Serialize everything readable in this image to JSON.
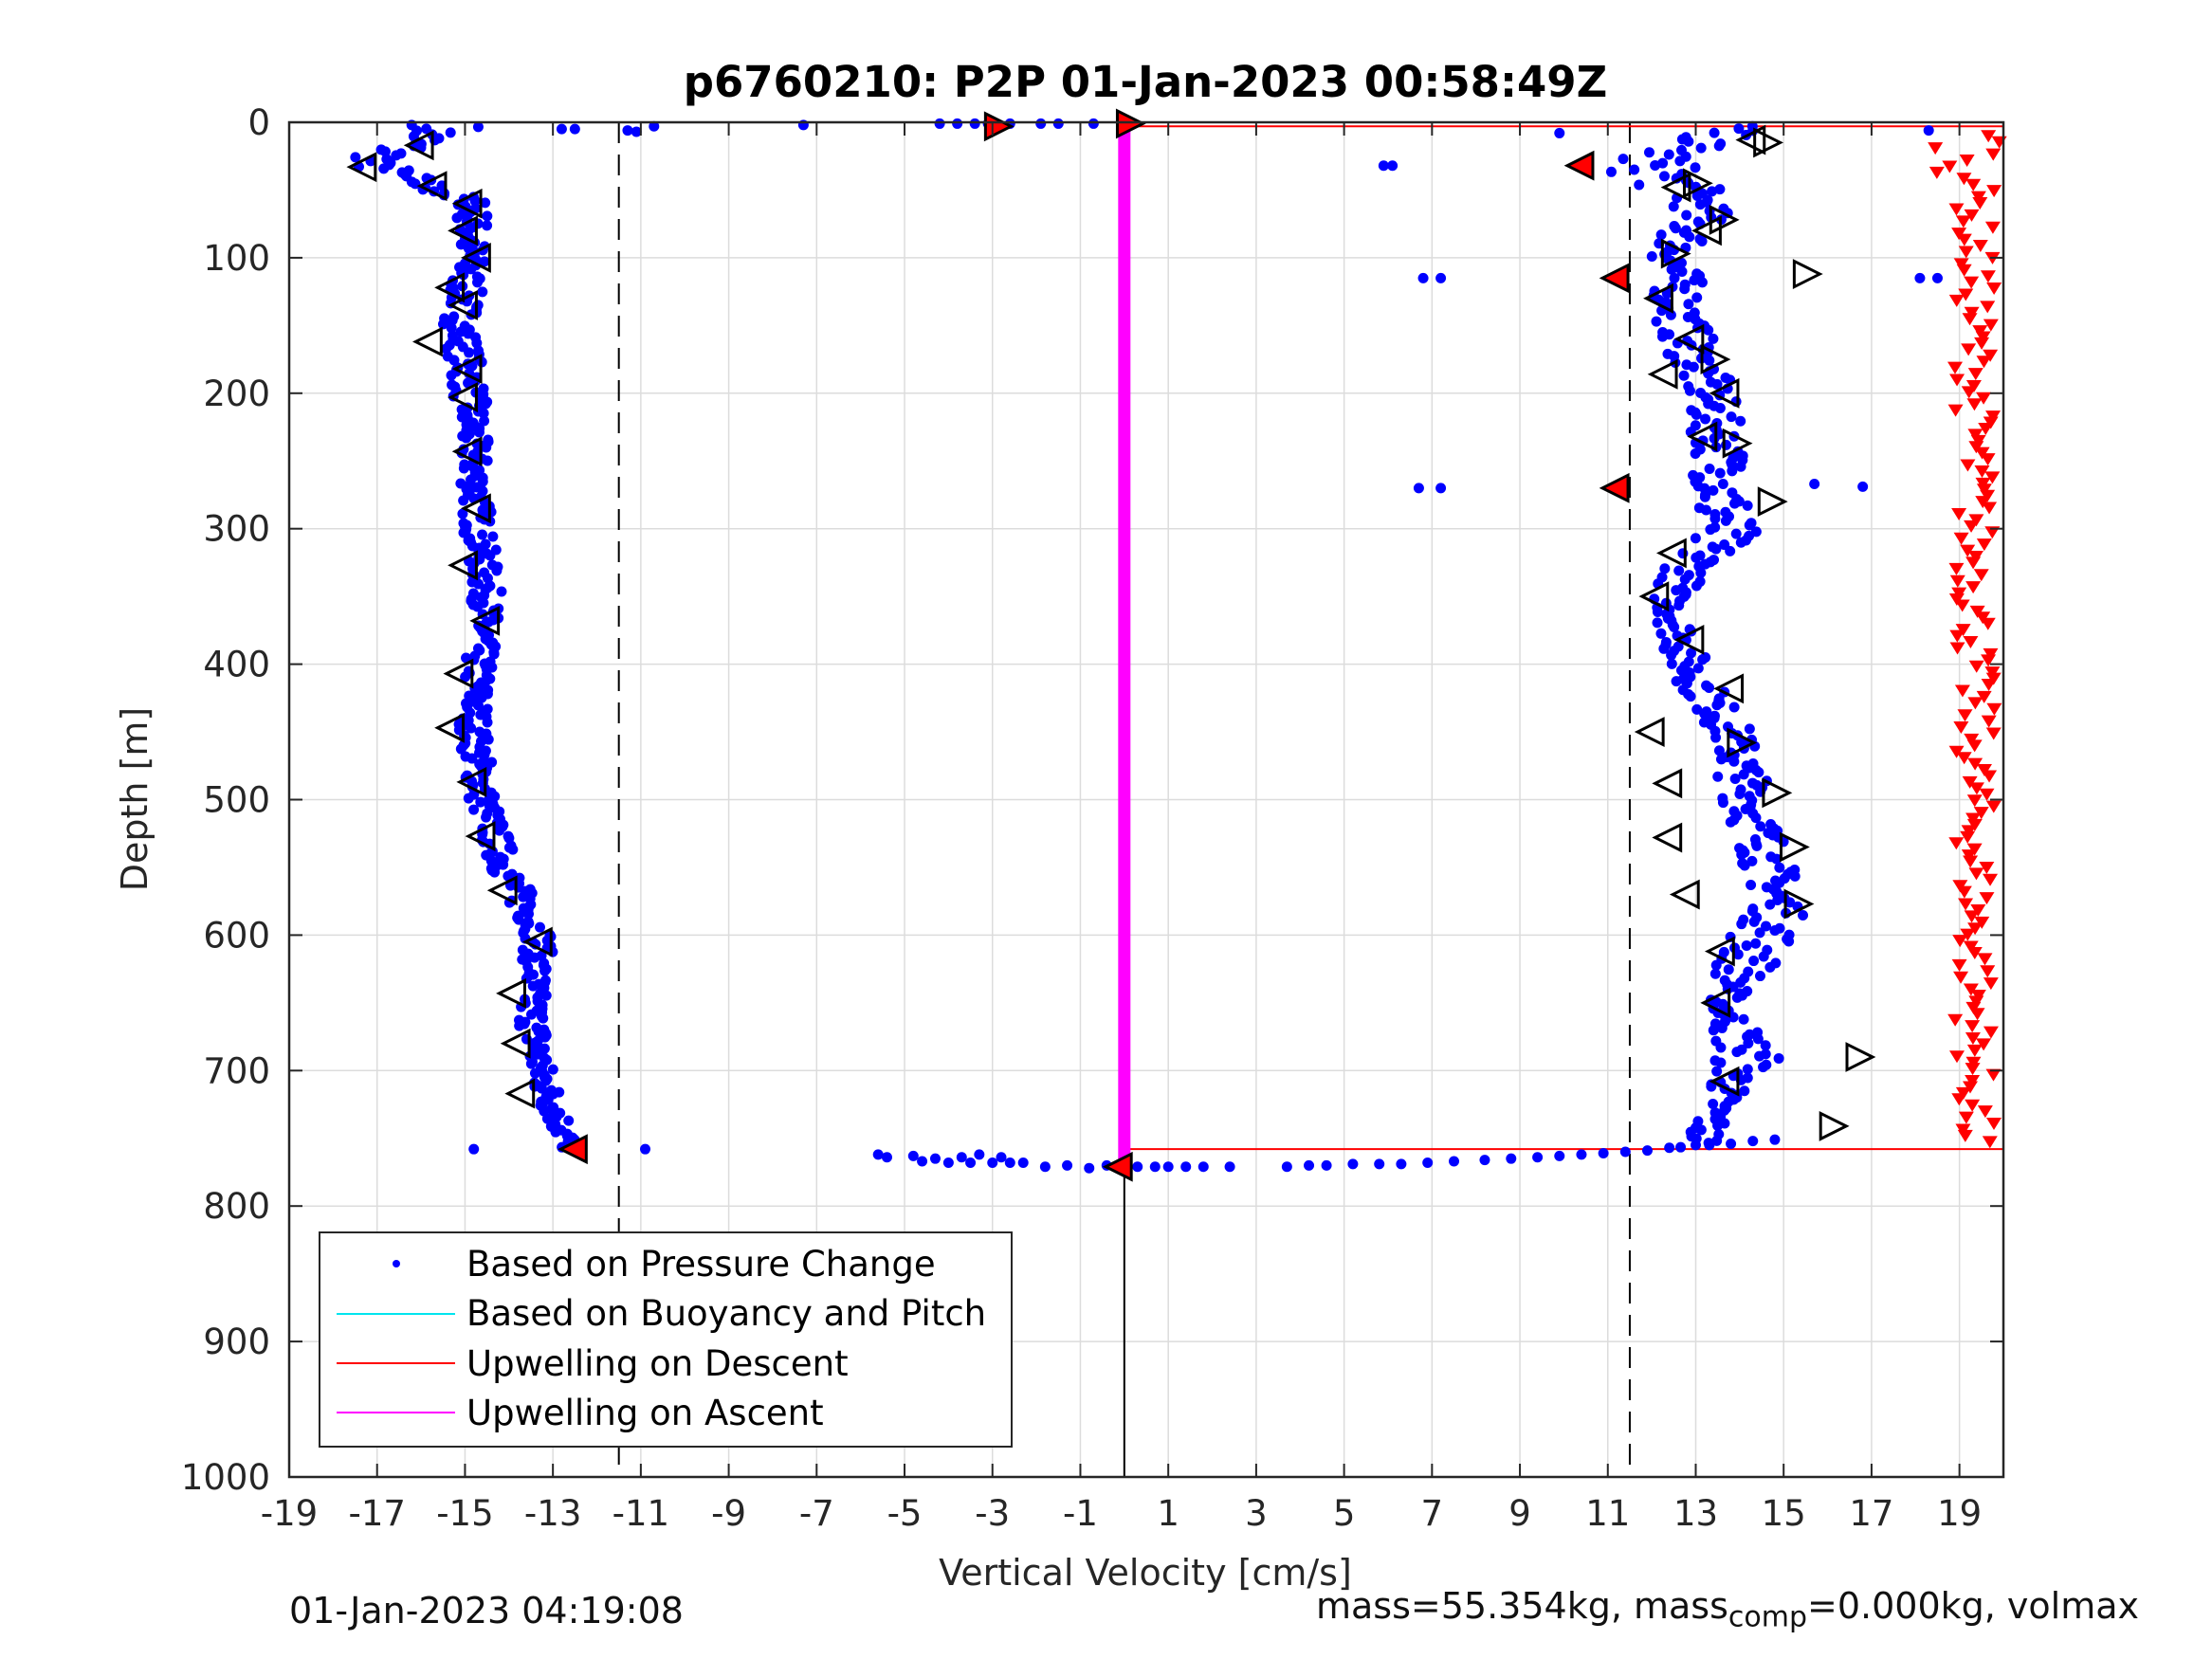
{
  "chart_data": {
    "type": "scatter",
    "title": "p6760210: P2P 01-Jan-2023 00:58:49Z",
    "xlabel": "Vertical Velocity [cm/s]",
    "ylabel": "Depth [m]",
    "xlim": [
      -19,
      20
    ],
    "ylim": [
      0,
      1000
    ],
    "y_reversed": true,
    "grid": true,
    "x_ticks": [
      "-19",
      "-17",
      "-15",
      "-13",
      "-11",
      "-9",
      "-7",
      "-5",
      "-3",
      "-1",
      "1",
      "3",
      "5",
      "7",
      "9",
      "11",
      "13",
      "15",
      "17",
      "19"
    ],
    "y_ticks": [
      "0",
      "100",
      "200",
      "300",
      "400",
      "500",
      "600",
      "700",
      "800",
      "900",
      "1000"
    ],
    "legend_position": "bottom-left",
    "legend": [
      {
        "label": "Based on Pressure Change",
        "color": "#0000ff",
        "marker": "dot"
      },
      {
        "label": "Based on Buoyancy and Pitch",
        "color": "#00e5ee",
        "marker": "line"
      },
      {
        "label": "Upwelling on Descent",
        "color": "#ff0000",
        "marker": "line"
      },
      {
        "label": "Upwelling on Ascent",
        "color": "#ff00ff",
        "marker": "line"
      }
    ],
    "colors": {
      "pressure": "#0000ff",
      "buoyancy": "#00e5ee",
      "descent": "#ff0000",
      "ascent": "#ff00ff",
      "axis": "#262626",
      "grid": "#dcdcdc"
    },
    "dashed_lines_x": [
      -11.5,
      11.5
    ],
    "vertical_line": {
      "x": 0,
      "y_from": 770,
      "y_to": 1000
    },
    "red_connectors": [
      {
        "x1": 0,
        "y": 3,
        "x2": 20
      },
      {
        "x1": 0,
        "y": 758,
        "x2": 20
      }
    ],
    "ascent_segment": {
      "x": 0,
      "y_from": 3,
      "y_to": 770
    },
    "descent_profile": [
      {
        "depth": 0,
        "mean": -15.2,
        "spread": 0.9
      },
      {
        "depth": 30,
        "mean": -17.2,
        "spread": 0.6
      },
      {
        "depth": 60,
        "mean": -14.8,
        "spread": 0.4
      },
      {
        "depth": 100,
        "mean": -14.9,
        "spread": 0.4
      },
      {
        "depth": 150,
        "mean": -15.1,
        "spread": 0.4
      },
      {
        "depth": 200,
        "mean": -14.9,
        "spread": 0.4
      },
      {
        "depth": 250,
        "mean": -14.8,
        "spread": 0.35
      },
      {
        "depth": 300,
        "mean": -14.7,
        "spread": 0.35
      },
      {
        "depth": 350,
        "mean": -14.5,
        "spread": 0.35
      },
      {
        "depth": 400,
        "mean": -14.7,
        "spread": 0.35
      },
      {
        "depth": 450,
        "mean": -14.8,
        "spread": 0.35
      },
      {
        "depth": 500,
        "mean": -14.6,
        "spread": 0.35
      },
      {
        "depth": 550,
        "mean": -14.1,
        "spread": 0.35
      },
      {
        "depth": 600,
        "mean": -13.3,
        "spread": 0.35
      },
      {
        "depth": 650,
        "mean": -13.5,
        "spread": 0.35
      },
      {
        "depth": 700,
        "mean": -13.3,
        "spread": 0.35
      },
      {
        "depth": 750,
        "mean": -12.7,
        "spread": 0.3
      },
      {
        "depth": 760,
        "mean": -12.5,
        "spread": 0.3
      }
    ],
    "ascent_profile": [
      {
        "depth": 760,
        "mean": 13.0,
        "spread": 0.5
      },
      {
        "depth": 720,
        "mean": 13.6,
        "spread": 0.4
      },
      {
        "depth": 690,
        "mean": 14.2,
        "spread": 0.8
      },
      {
        "depth": 650,
        "mean": 13.6,
        "spread": 0.3
      },
      {
        "depth": 610,
        "mean": 14.4,
        "spread": 0.9
      },
      {
        "depth": 580,
        "mean": 14.9,
        "spread": 0.6
      },
      {
        "depth": 540,
        "mean": 14.6,
        "spread": 0.6
      },
      {
        "depth": 500,
        "mean": 14.2,
        "spread": 0.6
      },
      {
        "depth": 450,
        "mean": 13.8,
        "spread": 0.5
      },
      {
        "depth": 400,
        "mean": 12.8,
        "spread": 0.5
      },
      {
        "depth": 350,
        "mean": 12.4,
        "spread": 0.4
      },
      {
        "depth": 300,
        "mean": 13.6,
        "spread": 0.9
      },
      {
        "depth": 250,
        "mean": 13.6,
        "spread": 0.6
      },
      {
        "depth": 200,
        "mean": 13.3,
        "spread": 0.6
      },
      {
        "depth": 150,
        "mean": 12.7,
        "spread": 0.6
      },
      {
        "depth": 100,
        "mean": 12.5,
        "spread": 0.6
      },
      {
        "depth": 60,
        "mean": 13.2,
        "spread": 0.7
      },
      {
        "depth": 30,
        "mean": 11.8,
        "spread": 1.2
      },
      {
        "depth": 5,
        "mean": 13.9,
        "spread": 0.5
      }
    ],
    "surface_points": [
      {
        "x": -12.5,
        "y": 5
      },
      {
        "x": -12.8,
        "y": 5
      },
      {
        "x": -11.3,
        "y": 6
      },
      {
        "x": -11.1,
        "y": 7
      },
      {
        "x": -10.7,
        "y": 3
      },
      {
        "x": -7.3,
        "y": 2
      },
      {
        "x": -4.2,
        "y": 1
      },
      {
        "x": -3.8,
        "y": 1
      },
      {
        "x": -3.4,
        "y": 1
      },
      {
        "x": -3.1,
        "y": 1
      },
      {
        "x": -2.6,
        "y": 1
      },
      {
        "x": -1.9,
        "y": 1
      },
      {
        "x": -1.5,
        "y": 1
      },
      {
        "x": -0.7,
        "y": 1
      },
      {
        "x": 9.9,
        "y": 8
      },
      {
        "x": 18.3,
        "y": 6
      },
      {
        "x": 6.1,
        "y": 32
      },
      {
        "x": 5.9,
        "y": 32
      },
      {
        "x": 6.8,
        "y": 115
      },
      {
        "x": 7.2,
        "y": 115
      },
      {
        "x": 18.1,
        "y": 115
      },
      {
        "x": 18.5,
        "y": 115
      },
      {
        "x": 6.7,
        "y": 270
      },
      {
        "x": 7.2,
        "y": 270
      },
      {
        "x": 15.7,
        "y": 267
      },
      {
        "x": 16.8,
        "y": 269
      },
      {
        "x": -14.8,
        "y": 758
      },
      {
        "x": -10.9,
        "y": 758
      }
    ],
    "bottom_turn_points": [
      {
        "x": -5.6,
        "y": 762
      },
      {
        "x": -5.4,
        "y": 764
      },
      {
        "x": -4.8,
        "y": 763
      },
      {
        "x": -4.6,
        "y": 767
      },
      {
        "x": -4.3,
        "y": 765
      },
      {
        "x": -4.0,
        "y": 768
      },
      {
        "x": -3.7,
        "y": 764
      },
      {
        "x": -3.5,
        "y": 768
      },
      {
        "x": -3.3,
        "y": 762
      },
      {
        "x": -3.0,
        "y": 768
      },
      {
        "x": -2.8,
        "y": 764
      },
      {
        "x": -2.6,
        "y": 768
      },
      {
        "x": -2.3,
        "y": 768
      },
      {
        "x": -1.8,
        "y": 771
      },
      {
        "x": -1.3,
        "y": 770
      },
      {
        "x": -0.8,
        "y": 772
      },
      {
        "x": -0.4,
        "y": 770
      },
      {
        "x": 0.3,
        "y": 771
      },
      {
        "x": 0.7,
        "y": 771
      },
      {
        "x": 1.0,
        "y": 771
      },
      {
        "x": 1.4,
        "y": 771
      },
      {
        "x": 1.8,
        "y": 771
      },
      {
        "x": 2.4,
        "y": 771
      },
      {
        "x": 3.7,
        "y": 771
      },
      {
        "x": 4.2,
        "y": 770
      },
      {
        "x": 4.6,
        "y": 770
      },
      {
        "x": 5.2,
        "y": 769
      },
      {
        "x": 5.8,
        "y": 769
      },
      {
        "x": 6.3,
        "y": 769
      },
      {
        "x": 6.9,
        "y": 768
      },
      {
        "x": 7.5,
        "y": 767
      },
      {
        "x": 8.2,
        "y": 766
      },
      {
        "x": 8.8,
        "y": 765
      },
      {
        "x": 9.4,
        "y": 764
      },
      {
        "x": 9.9,
        "y": 763
      },
      {
        "x": 10.4,
        "y": 762
      },
      {
        "x": 10.9,
        "y": 761
      },
      {
        "x": 11.4,
        "y": 760
      },
      {
        "x": 11.9,
        "y": 759
      },
      {
        "x": 12.4,
        "y": 757
      },
      {
        "x": 13.0,
        "y": 755
      },
      {
        "x": 13.8,
        "y": 754
      },
      {
        "x": 14.3,
        "y": 752
      },
      {
        "x": 14.8,
        "y": 751
      }
    ],
    "triangle_markers_left": [
      {
        "x": -17.3,
        "y": 33
      },
      {
        "x": -16.0,
        "y": 17
      },
      {
        "x": -15.7,
        "y": 47
      },
      {
        "x": -14.9,
        "y": 60
      },
      {
        "x": -15.0,
        "y": 80
      },
      {
        "x": -14.7,
        "y": 100
      },
      {
        "x": -15.3,
        "y": 122
      },
      {
        "x": -15.0,
        "y": 135
      },
      {
        "x": -15.8,
        "y": 162
      },
      {
        "x": -14.9,
        "y": 182
      },
      {
        "x": -15.0,
        "y": 203
      },
      {
        "x": -14.9,
        "y": 243
      },
      {
        "x": -14.7,
        "y": 285
      },
      {
        "x": -15.0,
        "y": 327
      },
      {
        "x": -14.5,
        "y": 368
      },
      {
        "x": -15.1,
        "y": 407
      },
      {
        "x": -15.3,
        "y": 447
      },
      {
        "x": -14.8,
        "y": 487
      },
      {
        "x": -14.6,
        "y": 527
      },
      {
        "x": -14.1,
        "y": 567
      },
      {
        "x": -13.3,
        "y": 605
      },
      {
        "x": -13.9,
        "y": 643
      },
      {
        "x": -13.8,
        "y": 680
      },
      {
        "x": -13.7,
        "y": 717
      },
      {
        "x": 14.3,
        "y": 13
      },
      {
        "x": 12.6,
        "y": 48
      },
      {
        "x": 13.3,
        "y": 80
      },
      {
        "x": 12.2,
        "y": 130
      },
      {
        "x": 12.9,
        "y": 160
      },
      {
        "x": 12.3,
        "y": 186
      },
      {
        "x": 13.7,
        "y": 200
      },
      {
        "x": 13.2,
        "y": 232
      },
      {
        "x": 12.5,
        "y": 318
      },
      {
        "x": 12.1,
        "y": 350
      },
      {
        "x": 12.9,
        "y": 382
      },
      {
        "x": 13.8,
        "y": 418
      },
      {
        "x": 12.0,
        "y": 450
      },
      {
        "x": 12.4,
        "y": 488
      },
      {
        "x": 12.4,
        "y": 528
      },
      {
        "x": 12.8,
        "y": 570
      },
      {
        "x": 13.6,
        "y": 612
      },
      {
        "x": 13.5,
        "y": 650
      },
      {
        "x": 13.7,
        "y": 708
      }
    ],
    "triangle_markers_right": [
      {
        "x": 14.6,
        "y": 15
      },
      {
        "x": 13.0,
        "y": 45
      },
      {
        "x": 13.6,
        "y": 72
      },
      {
        "x": 12.5,
        "y": 97
      },
      {
        "x": 15.5,
        "y": 112
      },
      {
        "x": 13.4,
        "y": 175
      },
      {
        "x": 13.9,
        "y": 237
      },
      {
        "x": 14.7,
        "y": 280
      },
      {
        "x": 14.0,
        "y": 458
      },
      {
        "x": 14.8,
        "y": 495
      },
      {
        "x": 15.2,
        "y": 535
      },
      {
        "x": 15.3,
        "y": 577
      },
      {
        "x": 16.7,
        "y": 690
      },
      {
        "x": 16.1,
        "y": 741
      }
    ],
    "red_markers": [
      {
        "x": -2.9,
        "y": 3,
        "dir": "right"
      },
      {
        "x": 0.1,
        "y": 1,
        "dir": "right"
      },
      {
        "x": 10.4,
        "y": 32,
        "dir": "left"
      },
      {
        "x": 11.2,
        "y": 115,
        "dir": "left"
      },
      {
        "x": 11.2,
        "y": 270,
        "dir": "left"
      },
      {
        "x": -12.5,
        "y": 758,
        "dir": "left"
      },
      {
        "x": -0.1,
        "y": 771,
        "dir": "left"
      }
    ]
  },
  "footer": {
    "date_stamp": "01-Jan-2023 04:19:08",
    "mass_text_1": "mass=55.354kg, mass",
    "mass_sub": "comp",
    "mass_text_2": "=0.000kg, volmax"
  }
}
